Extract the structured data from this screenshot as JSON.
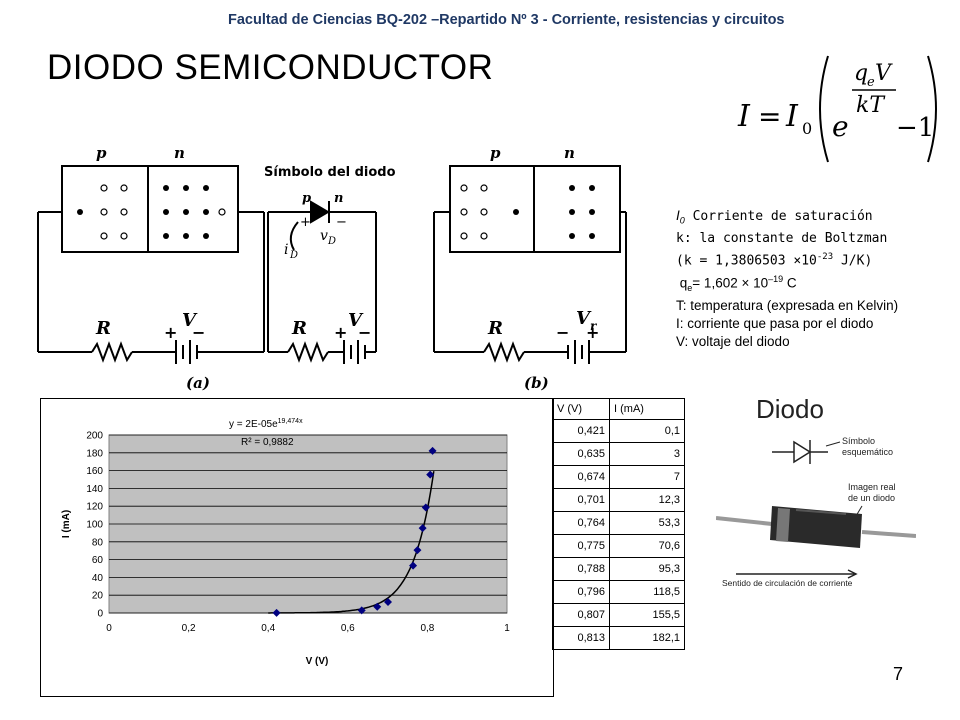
{
  "header": "Facultad de Ciencias  BQ-202 –Repartido Nº 3 -  Corriente, resistencias  y circuitos",
  "title": "DIODO SEMICONDUCTOR",
  "formula": {
    "lhs": "I",
    "eq": "=",
    "i0": "I",
    "i0_sub": "0",
    "e": "e",
    "num": "q",
    "num_sub": "e",
    "num_v": "V",
    "den": "kT",
    "minus_one": "−1"
  },
  "circuit_labels": {
    "p": "p",
    "n": "n",
    "symbol_title": "Símbolo  del  diodo",
    "R": "R",
    "V": "V",
    "Vr": "V",
    "Vr_sub": "r",
    "plus": "+",
    "minus": "−",
    "iD": "i",
    "iD_sub": "D",
    "vD": "v",
    "vD_sub": "D",
    "a": "(a)",
    "b": "(b)"
  },
  "legend": {
    "l1_sym": "I",
    "l1_sub": "0",
    "l1_text": " Corriente de saturación",
    "l2": "k: la constante de Boltzman",
    "l3a": "(k = 1,3806503 ×10",
    "l3_sup": "-23",
    "l3b": " J/K)",
    "l4a": "q",
    "l4_sub": "e",
    "l4b": "= 1,602  × 10",
    "l4_sup": "–19",
    "l4c": " C",
    "l5": "T: temperatura (expresada en Kelvin)",
    "l6": "I: corriente que pasa por el diodo",
    "l7": "V: voltaje del diodo"
  },
  "chart_data": {
    "type": "scatter",
    "xlabel": "V (V)",
    "ylabel": "I (mA)",
    "xlim": [
      0,
      1
    ],
    "ylim": [
      0,
      200
    ],
    "xticks": [
      "0",
      "0,2",
      "0,4",
      "0,6",
      "0,8",
      "1"
    ],
    "yticks": [
      "0",
      "20",
      "40",
      "60",
      "80",
      "100",
      "120",
      "140",
      "160",
      "180",
      "200"
    ],
    "trend_eq": "y = 2E-05e",
    "trend_exp": "19,474x",
    "r2": "R² = 0,9882",
    "x": [
      0.421,
      0.635,
      0.674,
      0.701,
      0.764,
      0.775,
      0.788,
      0.796,
      0.807,
      0.813
    ],
    "y": [
      0.1,
      3,
      7,
      12.3,
      53.3,
      70.6,
      95.3,
      118.5,
      155.5,
      182.1
    ],
    "marker_color": "#000080",
    "plot_bg": "#c0c0c0"
  },
  "table": {
    "headers": [
      "V (V)",
      "I (mA)"
    ],
    "rows": [
      [
        "0,421",
        "0,1"
      ],
      [
        "0,635",
        "3"
      ],
      [
        "0,674",
        "7"
      ],
      [
        "0,701",
        "12,3"
      ],
      [
        "0,764",
        "53,3"
      ],
      [
        "0,775",
        "70,6"
      ],
      [
        "0,788",
        "95,3"
      ],
      [
        "0,796",
        "118,5"
      ],
      [
        "0,807",
        "155,5"
      ],
      [
        "0,813",
        "182,1"
      ]
    ]
  },
  "photo": {
    "title": "Diodo",
    "symbol_label_1": "Símbolo",
    "symbol_label_2": "esquemático",
    "real_label_1": "Imagen real",
    "real_label_2": "de un diodo",
    "direction_label": "Sentido de circulación de corriente"
  },
  "page_number": "7"
}
